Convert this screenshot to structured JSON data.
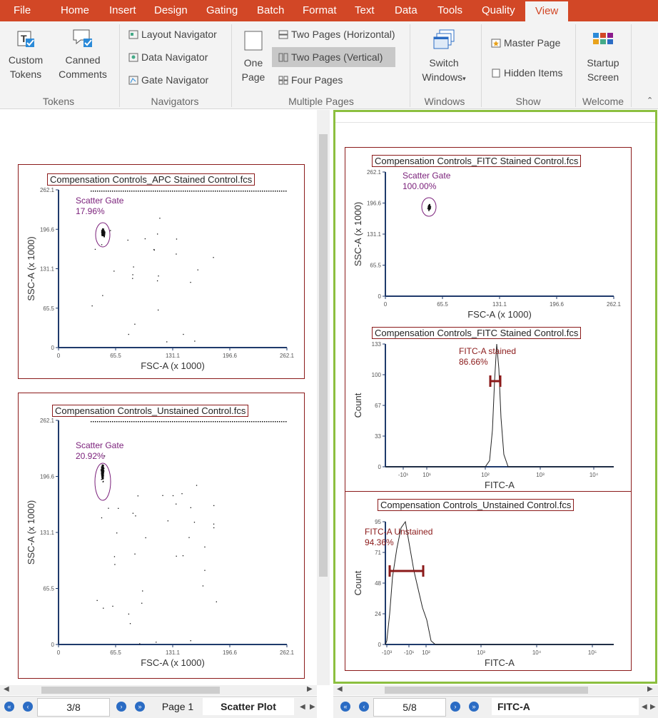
{
  "menu": [
    "File",
    "Home",
    "Insert",
    "Design",
    "Gating",
    "Batch",
    "Format",
    "Text",
    "Data",
    "Tools",
    "Quality",
    "View"
  ],
  "ribbon": {
    "tokens": {
      "custom": "Custom Tokens",
      "custom_l1": "Custom",
      "custom_l2": "Tokens",
      "canned_l1": "Canned",
      "canned_l2": "Comments",
      "label": "Tokens"
    },
    "navigators": {
      "layout": "Layout Navigator",
      "data": "Data Navigator",
      "gate": "Gate Navigator",
      "label": "Navigators"
    },
    "pages": {
      "one_l1": "One",
      "one_l2": "Page",
      "two_h": "Two Pages (Horizontal)",
      "two_v": "Two Pages (Vertical)",
      "four": "Four Pages",
      "label": "Multiple Pages"
    },
    "windows": {
      "switch_l1": "Switch",
      "switch_l2": "Windows",
      "label": "Windows"
    },
    "show": {
      "master": "Master Page",
      "hidden": "Hidden Items",
      "label": "Show"
    },
    "welcome": {
      "start_l1": "Startup",
      "start_l2": "Screen",
      "label": "Welcome"
    }
  },
  "left": {
    "g1": {
      "title": "Compensation Controls_APC Stained Control.fcs",
      "gate": "Scatter Gate",
      "pct": "17.96%",
      "xlabel": "FSC-A (x 1000)",
      "ylabel": "SSC-A (x 1000)"
    },
    "g2": {
      "title": "Compensation Controls_Unstained Control.fcs",
      "gate": "Scatter Gate",
      "pct": "20.92%",
      "xlabel": "FSC-A (x 1000)",
      "ylabel": "SSC-A (x 1000)"
    },
    "ticks": [
      "0",
      "65.5",
      "131.1",
      "196.6",
      "262.1"
    ],
    "status": {
      "page": "3/8",
      "tab1": "Page 1",
      "tab2": "Scatter Plot"
    }
  },
  "right": {
    "g1": {
      "title": "Compensation Controls_FITC Stained Control.fcs",
      "gate": "Scatter Gate",
      "pct": "100.00%",
      "xlabel": "FSC-A (x 1000)",
      "ylabel": "SSC-A (x 1000)"
    },
    "g2": {
      "title": "Compensation Controls_FITC Stained Control.fcs",
      "gate": "FITC-A stained",
      "pct": "86.66%",
      "xlabel": "FITC-A",
      "ylabel": "Count",
      "yticks": [
        "0",
        "33",
        "67",
        "100",
        "133"
      ]
    },
    "g3": {
      "title": "Compensation Controls_Unstained Control.fcs",
      "gate": "FITC-A Unstained",
      "pct": "94.36%",
      "xlabel": "FITC-A",
      "ylabel": "Count",
      "yticks": [
        "0",
        "24",
        "48",
        "71",
        "95"
      ]
    },
    "status": {
      "page": "5/8",
      "tab": "FITC-A"
    }
  },
  "colors": {
    "accent": "#d24726",
    "gate": "#7a1f7a",
    "histgate": "#8b1a1a",
    "axis": "#1f3a6b",
    "border_active": "#8cbf3f"
  }
}
